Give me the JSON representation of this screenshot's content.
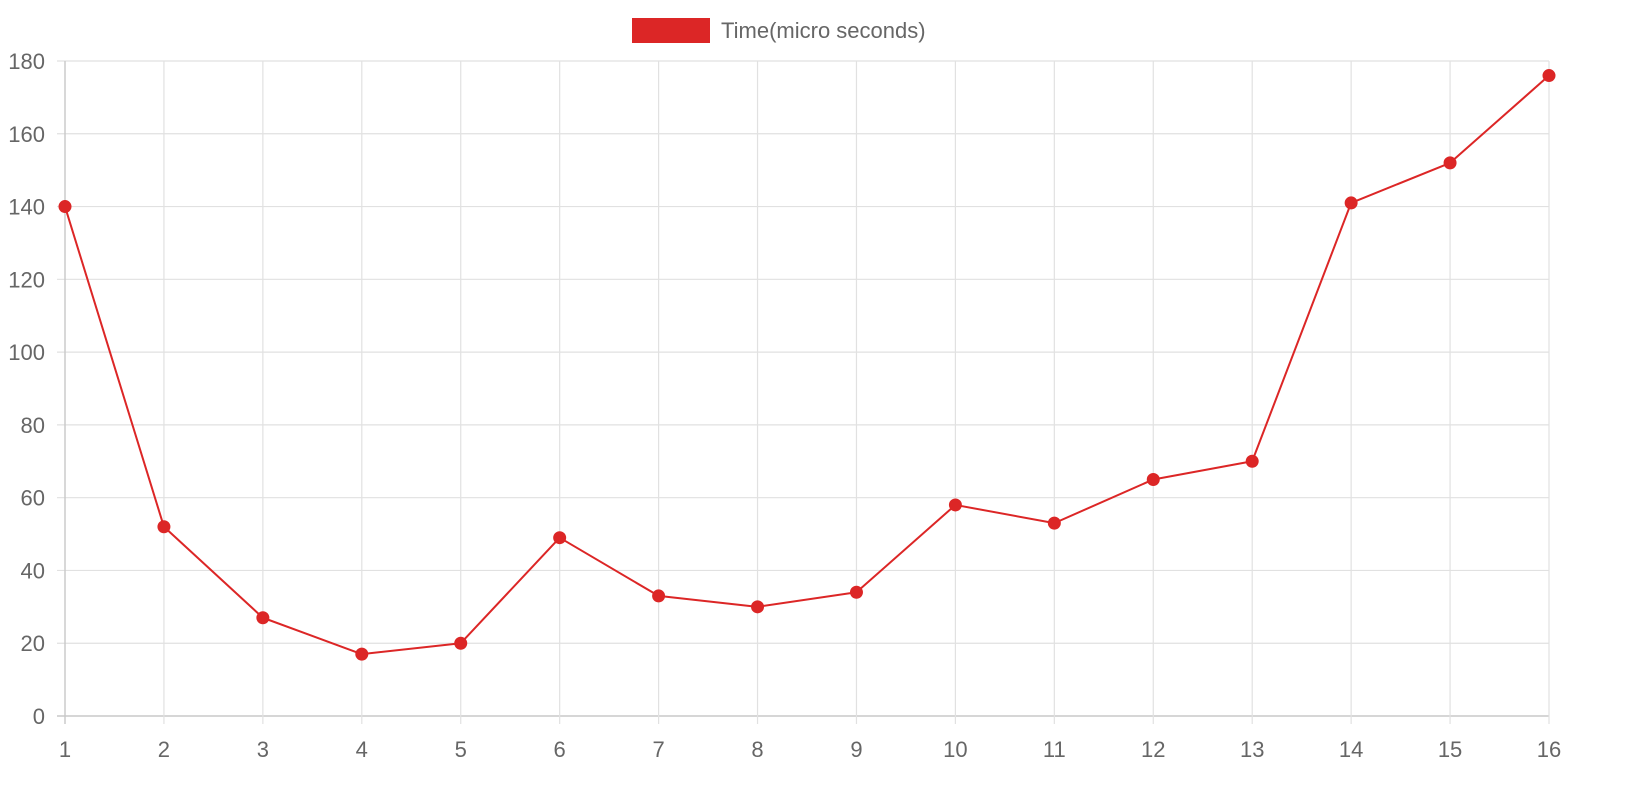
{
  "chart_data": {
    "type": "line",
    "x": [
      "1",
      "2",
      "3",
      "4",
      "5",
      "6",
      "7",
      "8",
      "9",
      "10",
      "11",
      "12",
      "13",
      "14",
      "15",
      "16"
    ],
    "series": [
      {
        "name": "Time(micro seconds)",
        "values": [
          140,
          52,
          27,
          17,
          20,
          49,
          33,
          30,
          34,
          58,
          53,
          65,
          70,
          141,
          152,
          176
        ]
      }
    ],
    "ylim": [
      0,
      180
    ],
    "yticks": [
      "0",
      "20",
      "40",
      "60",
      "80",
      "100",
      "120",
      "140",
      "160",
      "180"
    ],
    "grid": true,
    "legend_position": "top-center",
    "colors": {
      "series": "#dc2626",
      "grid": "#e1e1e1",
      "text": "#666666"
    }
  }
}
